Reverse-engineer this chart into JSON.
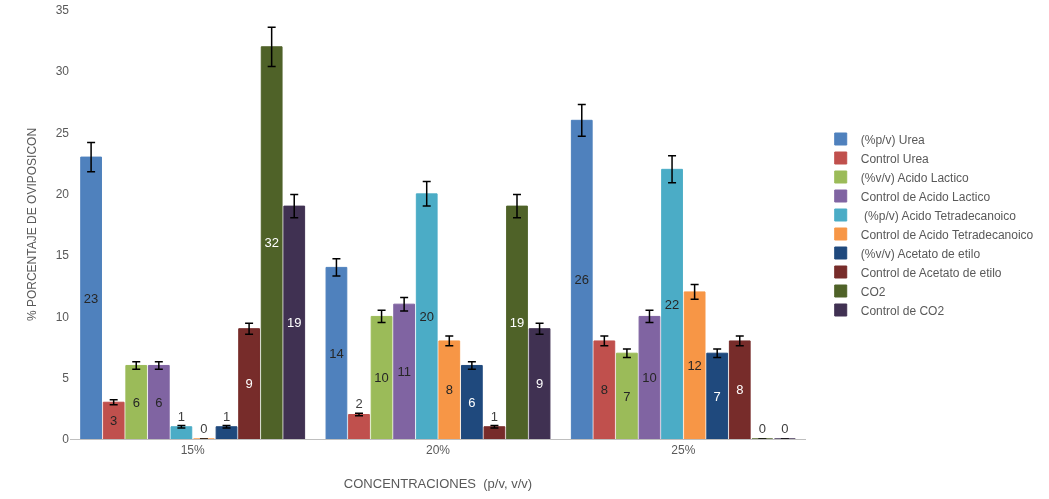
{
  "chart_data": {
    "type": "bar",
    "xlabel": "CONCENTRACIONES  (p/v, v/v)",
    "ylabel": "% PORCENTAJE DE OVIPOSICON",
    "categories": [
      "15%",
      "20%",
      "25%"
    ],
    "series": [
      {
        "name": "(%p/v) Urea",
        "color": "#4f81bd",
        "values": [
          23,
          14,
          26
        ],
        "errors": [
          1.2,
          0.7,
          1.3
        ]
      },
      {
        "name": "Control Urea",
        "color": "#c0504d",
        "values": [
          3,
          2,
          8
        ],
        "errors": [
          0.2,
          0.1,
          0.4
        ]
      },
      {
        "name": "(%v/v) Acido Lactico",
        "color": "#9bbb59",
        "values": [
          6,
          10,
          7
        ],
        "errors": [
          0.3,
          0.5,
          0.35
        ]
      },
      {
        "name": "Control de Acido Lactico",
        "color": "#8064a2",
        "values": [
          6,
          11,
          10
        ],
        "errors": [
          0.3,
          0.55,
          0.5
        ]
      },
      {
        "name": " (%p/v) Acido Tetradecanoico",
        "color": "#4bacc6",
        "values": [
          1,
          20,
          22
        ],
        "errors": [
          0.1,
          1,
          1.1
        ]
      },
      {
        "name": "Control de Acido Tetradecanoico",
        "color": "#f79646",
        "values": [
          0,
          8,
          12
        ],
        "errors": [
          0,
          0.4,
          0.6
        ]
      },
      {
        "name": "(%v/v) Acetato de etilo",
        "color": "#1f497d",
        "values": [
          1,
          6,
          7
        ],
        "errors": [
          0.1,
          0.3,
          0.35
        ]
      },
      {
        "name": "Control de Acetato de etilo",
        "color": "#772c2a",
        "values": [
          9,
          1,
          8
        ],
        "errors": [
          0.45,
          0.1,
          0.4
        ]
      },
      {
        "name": "CO2",
        "color": "#4f6228",
        "values": [
          32,
          19,
          0
        ],
        "errors": [
          1.6,
          0.95,
          0
        ]
      },
      {
        "name": "Control de CO2",
        "color": "#403152",
        "values": [
          19,
          9,
          0
        ],
        "errors": [
          0.95,
          0.45,
          0
        ]
      }
    ],
    "ylim": [
      0,
      35
    ],
    "yticks": [
      0,
      5,
      10,
      15,
      20,
      25,
      30,
      35
    ],
    "grid": false,
    "legend": "right",
    "data_labels": true
  }
}
